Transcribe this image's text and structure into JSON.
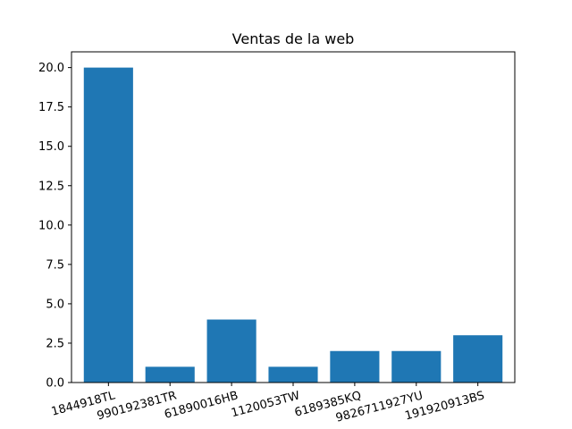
{
  "chart_data": {
    "type": "bar",
    "title": "Ventas de la web",
    "xlabel": "",
    "ylabel": "",
    "categories": [
      "1844918TL",
      "990192381TR",
      "61890016HB",
      "1120053TW",
      "6189385KQ",
      "9826711927YU",
      "191920913BS"
    ],
    "values": [
      20,
      1,
      4,
      1,
      2,
      2,
      3
    ],
    "ylim": [
      0,
      21
    ],
    "yticks": [
      "0.0",
      "2.5",
      "5.0",
      "7.5",
      "10.0",
      "12.5",
      "15.0",
      "17.5",
      "20.0"
    ],
    "ytick_values": [
      0,
      2.5,
      5,
      7.5,
      10,
      12.5,
      15,
      17.5,
      20
    ],
    "bar_color": "#1f77b4",
    "grid": false,
    "xtick_rotation_deg": -15
  }
}
